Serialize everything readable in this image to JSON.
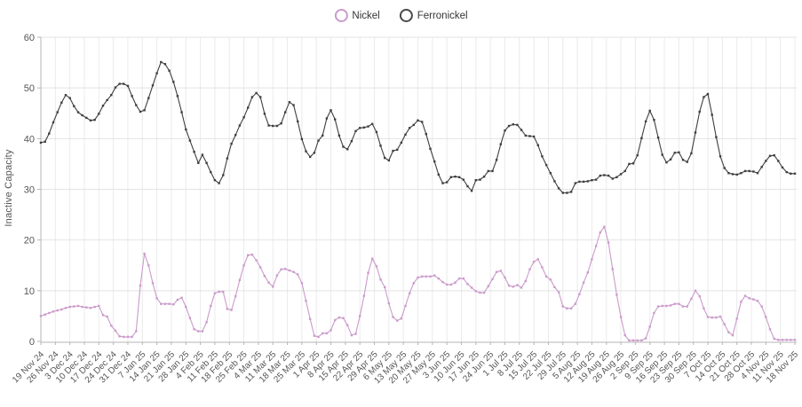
{
  "legend": {
    "items": [
      {
        "label": "Nickel",
        "color": "#cb9bcb"
      },
      {
        "label": "Ferronickel",
        "color": "#4a4a4a"
      }
    ]
  },
  "y_axis": {
    "title": "Inactive Capacity",
    "ticks": [
      0,
      10,
      20,
      30,
      40,
      50,
      60
    ],
    "min": 0,
    "max": 60
  },
  "chart_data": {
    "type": "line",
    "title": "",
    "xlabel": "",
    "ylabel": "Inactive Capacity",
    "ylim": [
      0,
      60
    ],
    "grid": true,
    "legend_position": "top-center",
    "x_tick_labels": [
      "19 Nov 24",
      "26 Nov 24",
      "3 Dec 24",
      "10 Dec 24",
      "17 Dec 24",
      "24 Dec 24",
      "31 Dec 24",
      "7 Jan 25",
      "14 Jan 25",
      "21 Jan 25",
      "28 Jan 25",
      "4 Feb 25",
      "11 Feb 25",
      "18 Feb 25",
      "25 Feb 25",
      "4 Mar 25",
      "11 Mar 25",
      "18 Mar 25",
      "25 Mar 25",
      "1 Apr 25",
      "8 Apr 25",
      "15 Apr 25",
      "22 Apr 25",
      "29 Apr 25",
      "6 May 25",
      "13 May 25",
      "20 May 25",
      "27 May 25",
      "3 Jun 25",
      "10 Jun 25",
      "17 Jun 25",
      "24 Jun 25",
      "1 Jul 25",
      "8 Jul 25",
      "15 Jul 25",
      "22 Jul 25",
      "29 Jul 25",
      "5 Aug 25",
      "12 Aug 25",
      "19 Aug 25",
      "26 Aug 25",
      "2 Sep 25",
      "9 Sep 25",
      "16 Sep 25",
      "23 Sep 25",
      "30 Sep 25",
      "7 Oct 25",
      "14 Oct 25",
      "21 Oct 25",
      "28 Oct 25",
      "4 Nov 25",
      "11 Nov 25",
      "18 Nov 25"
    ],
    "days_per_tick": 7,
    "x_start_label": "19 Nov 24",
    "sample_step_days": 2,
    "series": [
      {
        "name": "Nickel",
        "color": "#cb9bcb",
        "values": [
          5.0,
          5.3,
          5.6,
          5.9,
          6.1,
          6.3,
          6.6,
          6.8,
          6.9,
          7.0,
          6.8,
          6.7,
          6.6,
          6.8,
          7.0,
          5.2,
          4.9,
          3.1,
          2.1,
          1.0,
          0.9,
          0.9,
          0.9,
          2.0,
          11.0,
          17.3,
          15.0,
          11.5,
          8.5,
          7.4,
          7.4,
          7.4,
          7.3,
          8.2,
          8.6,
          6.8,
          4.6,
          2.4,
          2.0,
          2.0,
          3.8,
          7.0,
          9.5,
          9.8,
          9.8,
          6.4,
          6.2,
          8.9,
          12.1,
          15.0,
          17.0,
          17.1,
          16.0,
          14.6,
          12.9,
          11.6,
          10.8,
          13.0,
          14.2,
          14.3,
          14.0,
          13.7,
          13.2,
          11.5,
          8.0,
          4.4,
          1.1,
          0.9,
          1.6,
          1.6,
          2.2,
          4.2,
          4.7,
          4.6,
          3.2,
          1.2,
          1.5,
          5.0,
          9.0,
          13.5,
          16.3,
          14.8,
          12.2,
          10.7,
          7.5,
          4.8,
          4.1,
          4.5,
          7.0,
          9.5,
          11.5,
          12.6,
          12.8,
          12.8,
          12.8,
          13.0,
          12.4,
          11.7,
          11.2,
          11.2,
          11.6,
          12.4,
          12.4,
          11.3,
          10.6,
          9.9,
          9.6,
          9.6,
          10.9,
          12.3,
          13.7,
          13.9,
          12.6,
          11.0,
          10.8,
          11.1,
          10.6,
          11.9,
          14.2,
          15.7,
          16.2,
          14.6,
          12.8,
          12.2,
          10.7,
          9.7,
          6.9,
          6.5,
          6.5,
          7.4,
          9.3,
          11.6,
          13.6,
          16.2,
          18.8,
          21.5,
          22.6,
          19.5,
          14.3,
          9.2,
          4.8,
          1.2,
          0.2,
          0.2,
          0.2,
          0.2,
          0.6,
          2.9,
          5.6,
          6.9,
          7.0,
          7.0,
          7.1,
          7.4,
          7.4,
          6.9,
          6.9,
          8.4,
          10.0,
          8.9,
          6.5,
          4.8,
          4.7,
          4.7,
          4.9,
          3.4,
          1.8,
          1.2,
          4.5,
          7.8,
          9.0,
          8.5,
          8.3,
          8.0,
          6.9,
          4.8,
          2.4,
          0.5,
          0.3,
          0.3,
          0.3,
          0.3,
          0.3
        ]
      },
      {
        "name": "Ferronickel",
        "color": "#3f3f3f",
        "values": [
          39.2,
          39.4,
          41.0,
          43.2,
          45.2,
          47.1,
          48.6,
          48.0,
          46.4,
          45.2,
          44.6,
          44.1,
          43.6,
          43.7,
          44.9,
          46.5,
          47.6,
          48.6,
          50.1,
          50.8,
          50.8,
          50.4,
          48.4,
          46.6,
          45.3,
          45.6,
          48.0,
          50.5,
          52.9,
          55.1,
          54.7,
          53.4,
          51.2,
          48.4,
          45.2,
          41.8,
          39.6,
          37.4,
          35.2,
          36.8,
          35.2,
          33.4,
          31.8,
          31.2,
          32.8,
          36.1,
          39.0,
          40.7,
          42.6,
          44.2,
          46.1,
          48.2,
          49.0,
          48.2,
          44.9,
          42.6,
          42.5,
          42.5,
          43.0,
          45.2,
          47.2,
          46.6,
          43.4,
          39.9,
          37.5,
          36.4,
          37.2,
          39.6,
          40.6,
          44.0,
          45.6,
          43.8,
          40.6,
          38.4,
          37.9,
          39.5,
          41.5,
          42.1,
          42.2,
          42.4,
          42.9,
          41.3,
          38.6,
          36.2,
          35.7,
          37.6,
          37.8,
          39.2,
          40.8,
          42.1,
          42.7,
          43.6,
          43.3,
          40.9,
          38.0,
          35.5,
          32.9,
          31.2,
          31.4,
          32.4,
          32.5,
          32.4,
          31.9,
          30.6,
          29.7,
          31.8,
          31.9,
          32.5,
          33.6,
          33.6,
          35.8,
          38.9,
          41.6,
          42.5,
          42.8,
          42.7,
          41.7,
          40.6,
          40.5,
          40.4,
          38.7,
          36.5,
          34.8,
          33.2,
          31.6,
          30.2,
          29.3,
          29.3,
          29.5,
          31.2,
          31.5,
          31.5,
          31.6,
          31.8,
          31.9,
          32.7,
          32.8,
          32.7,
          32.1,
          32.4,
          33.0,
          33.6,
          35.0,
          35.1,
          36.7,
          40.1,
          43.4,
          45.5,
          43.7,
          40.2,
          36.8,
          35.3,
          35.9,
          37.2,
          37.3,
          35.8,
          35.4,
          37.1,
          41.2,
          45.3,
          48.2,
          48.8,
          44.7,
          40.3,
          36.5,
          34.2,
          33.2,
          33.0,
          32.9,
          33.2,
          33.6,
          33.6,
          33.5,
          33.2,
          34.4,
          35.6,
          36.6,
          36.7,
          35.6,
          34.3,
          33.4,
          33.1,
          33.1
        ]
      }
    ]
  },
  "colors": {
    "background": "#ffffff",
    "grid_horizontal": "#e3e3e3",
    "grid_vertical": "#ebebeb",
    "axis_line": "#b5b5b5",
    "tick_text": "#555555"
  }
}
